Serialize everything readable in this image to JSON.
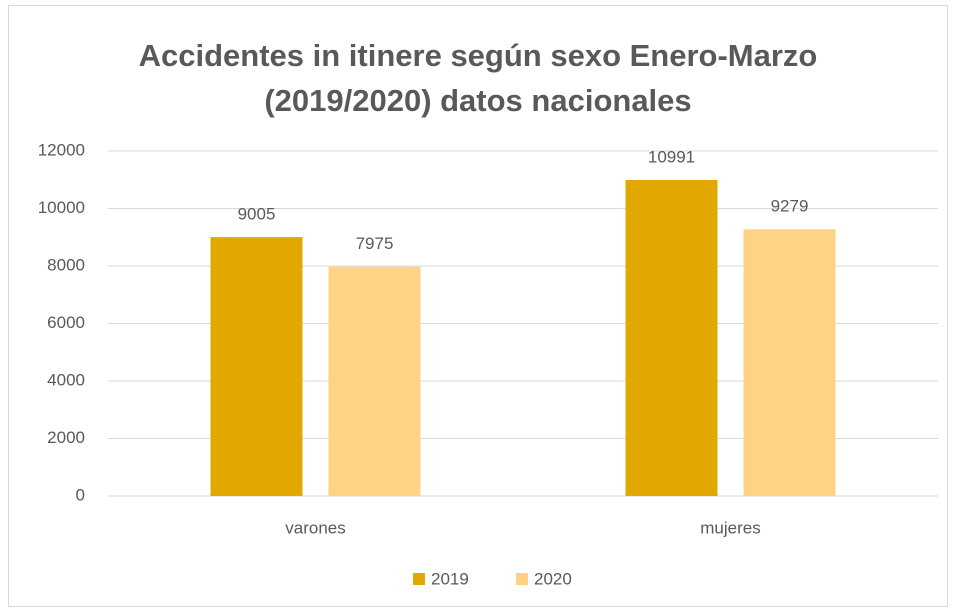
{
  "chart_data": {
    "type": "bar",
    "title": [
      "Accidentes in itinere según sexo Enero-Marzo",
      "(2019/2020) datos nacionales"
    ],
    "categories": [
      "varones",
      "mujeres"
    ],
    "series": [
      {
        "name": "2019",
        "color": "#E0A800",
        "values": [
          9005,
          10991
        ]
      },
      {
        "name": "2020",
        "color": "#FFD386",
        "values": [
          7975,
          9279
        ]
      }
    ],
    "ylim": [
      0,
      12000
    ],
    "yticks": [
      0,
      2000,
      4000,
      6000,
      8000,
      10000,
      12000
    ],
    "grid": true,
    "legend": "bottom"
  }
}
